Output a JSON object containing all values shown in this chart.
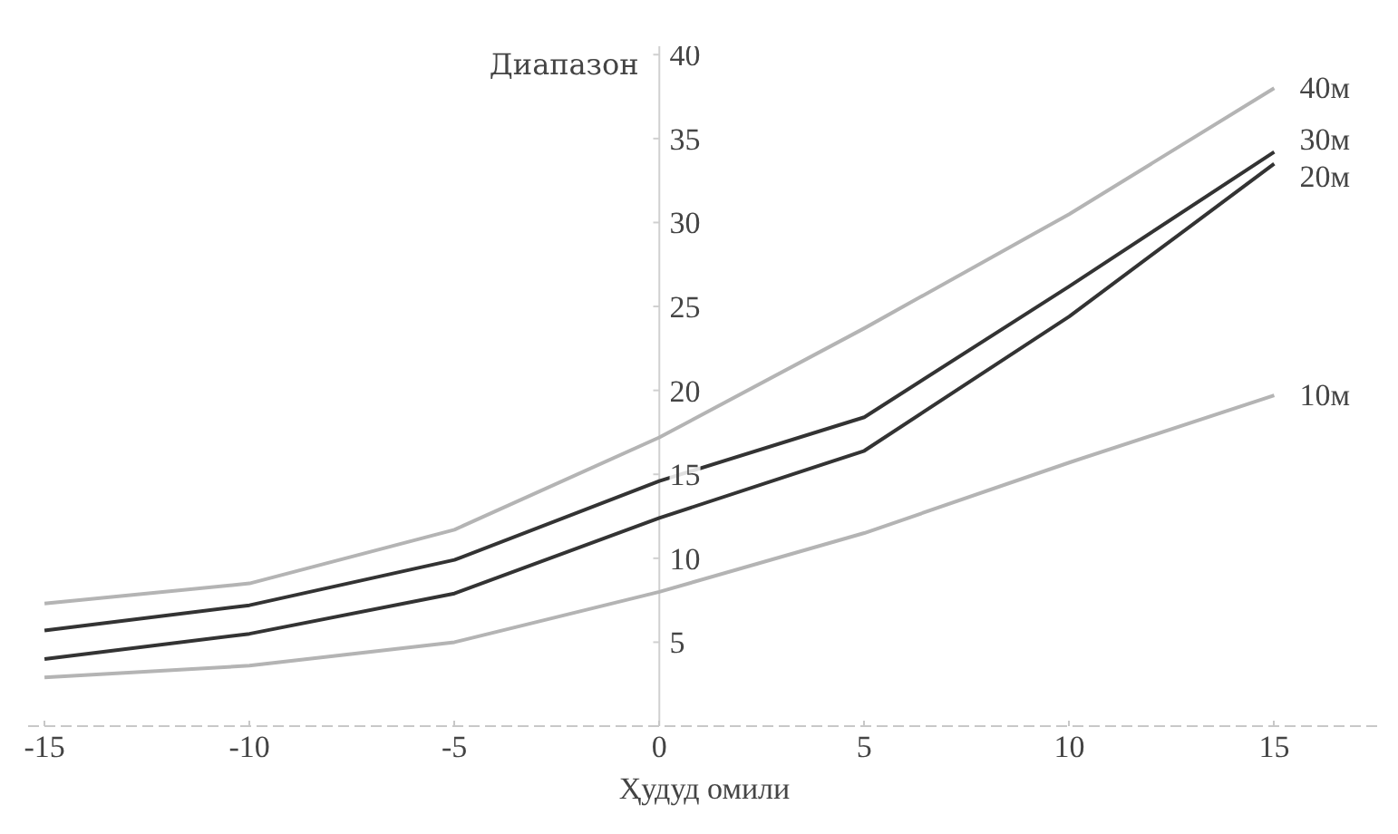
{
  "chart_data": {
    "type": "line",
    "xlabel": "Ҳудуд омили",
    "ylabel": "Диапазон",
    "x": [
      -15,
      -10,
      -5,
      0,
      5,
      10,
      15
    ],
    "series": [
      {
        "name": "40м",
        "color": "#b4b4b4",
        "values": [
          7.3,
          8.5,
          11.7,
          17.2,
          23.7,
          30.5,
          38
        ]
      },
      {
        "name": "30м",
        "color": "#333333",
        "values": [
          5.7,
          7.2,
          9.9,
          14.6,
          18.4,
          26.2,
          34.2
        ]
      },
      {
        "name": "20м",
        "color": "#333333",
        "values": [
          4.0,
          5.5,
          7.9,
          12.4,
          16.4,
          24.4,
          33.5
        ]
      },
      {
        "name": "10м",
        "color": "#b4b4b4",
        "values": [
          2.9,
          3.6,
          5.0,
          8.0,
          11.5,
          15.7,
          19.7
        ]
      }
    ],
    "xlim": [
      -15.4,
      17.6
    ],
    "ylim": [
      0,
      40.5
    ],
    "xticks": [
      -15,
      -10,
      -5,
      0,
      5,
      10,
      15
    ],
    "yticks": [
      5,
      10,
      15,
      20,
      25,
      30,
      35,
      40
    ],
    "grid": false,
    "marker": "none",
    "line_style": "solid"
  }
}
